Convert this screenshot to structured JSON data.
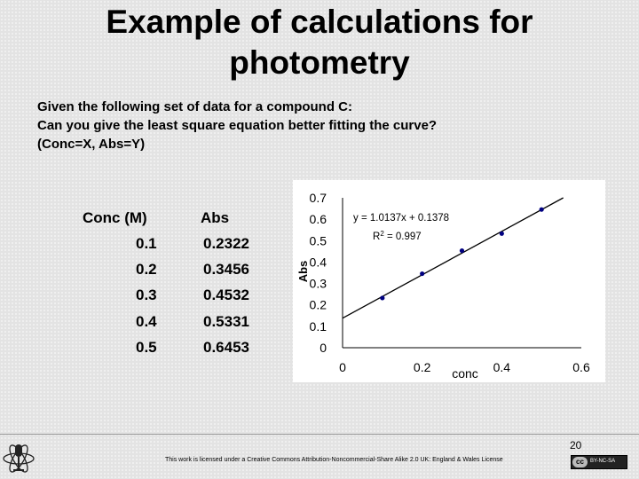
{
  "title_line1": "Example of calculations for",
  "title_line2": "photometry",
  "question": {
    "line1": "Given the following set of data for a compound C:",
    "line2": "Can you give the least square equation better fitting the curve?",
    "line3": "(Conc=X, Abs=Y)"
  },
  "table": {
    "headers": [
      "Conc (M)",
      "Abs"
    ],
    "rows": [
      [
        "0.1",
        "0.2322"
      ],
      [
        "0.2",
        "0.3456"
      ],
      [
        "0.3",
        "0.4532"
      ],
      [
        "0.4",
        "0.5331"
      ],
      [
        "0.5",
        "0.6453"
      ]
    ]
  },
  "chart_data": {
    "type": "scatter",
    "title": "",
    "xlabel": "conc",
    "ylabel": "Abs",
    "xlim": [
      0,
      0.6
    ],
    "ylim": [
      0,
      0.7
    ],
    "xticks": [
      "0",
      "0.2",
      "0.4",
      "0.6"
    ],
    "yticks": [
      "0",
      "0.1",
      "0.2",
      "0.3",
      "0.4",
      "0.5",
      "0.6",
      "0.7"
    ],
    "x": [
      0.1,
      0.2,
      0.3,
      0.4,
      0.5
    ],
    "y": [
      0.2322,
      0.3456,
      0.4532,
      0.5331,
      0.6453
    ],
    "trendline": {
      "slope": 1.0137,
      "intercept": 0.1378
    },
    "equation": "y = 1.0137x + 0.1378",
    "r2_label": "R",
    "r2_sup": "2",
    "r2_value": " = 0.997",
    "grid": false,
    "marker_color": "#000080",
    "line_color": "#000000"
  },
  "footer": {
    "page_number": "20",
    "license": "This work is licensed under a Creative Commons Attribution-Noncommercial-Share Alike 2.0 UK: England & Wales License",
    "badge_cc": "cc",
    "badge_text": "BY-NC-SA"
  }
}
